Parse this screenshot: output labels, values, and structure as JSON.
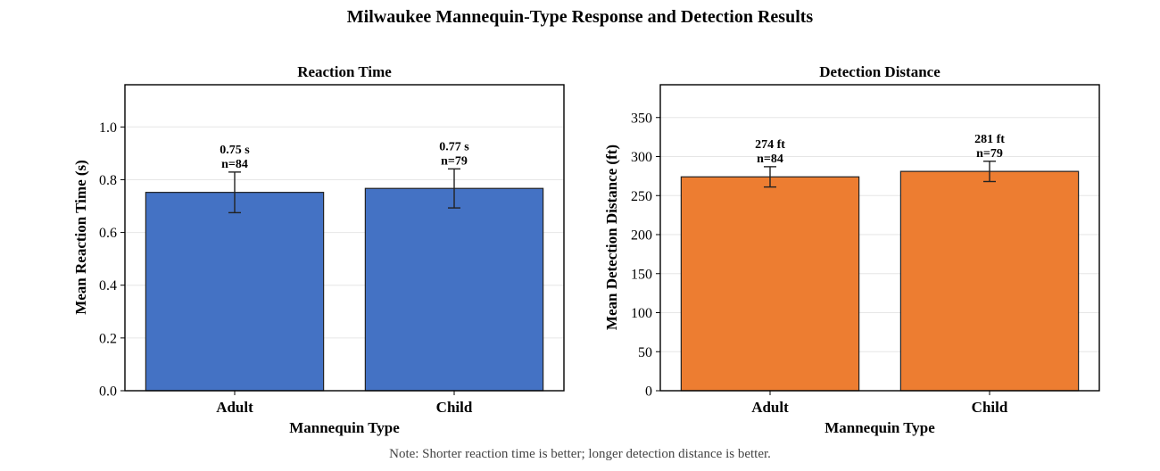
{
  "title": "Milwaukee Mannequin-Type Response and Detection Results",
  "note": "Note: Shorter reaction time is better; longer detection distance is better.",
  "colors": {
    "reaction": "#4472C4",
    "distance": "#ED7D31",
    "edge": "#222222",
    "grid": "#e6e6e6"
  },
  "chart_data": [
    {
      "type": "bar",
      "title": "Reaction Time",
      "xlabel": "Mannequin Type",
      "ylabel": "Mean Reaction Time (s)",
      "categories": [
        "Adult",
        "Child"
      ],
      "values": [
        0.752,
        0.767
      ],
      "error": [
        0.077,
        0.074
      ],
      "n": [
        84,
        79
      ],
      "data_labels": [
        {
          "value": "0.75 s",
          "n": "n=84"
        },
        {
          "value": "0.77 s",
          "n": "n=79"
        }
      ],
      "ylim": [
        0,
        1.16
      ],
      "yticks": [
        0.0,
        0.2,
        0.4,
        0.6,
        0.8,
        1.0
      ],
      "ytick_labels": [
        "0.0",
        "0.2",
        "0.4",
        "0.6",
        "0.8",
        "1.0"
      ],
      "grid": true
    },
    {
      "type": "bar",
      "title": "Detection Distance",
      "xlabel": "Mannequin Type",
      "ylabel": "Mean Detection Distance (ft)",
      "categories": [
        "Adult",
        "Child"
      ],
      "values": [
        274,
        281
      ],
      "error": [
        13,
        13
      ],
      "n": [
        84,
        79
      ],
      "data_labels": [
        {
          "value": "274 ft",
          "n": "n=84"
        },
        {
          "value": "281 ft",
          "n": "n=79"
        }
      ],
      "ylim": [
        0,
        392
      ],
      "yticks": [
        0,
        50,
        100,
        150,
        200,
        250,
        300,
        350
      ],
      "ytick_labels": [
        "0",
        "50",
        "100",
        "150",
        "200",
        "250",
        "300",
        "350"
      ],
      "grid": true
    }
  ]
}
